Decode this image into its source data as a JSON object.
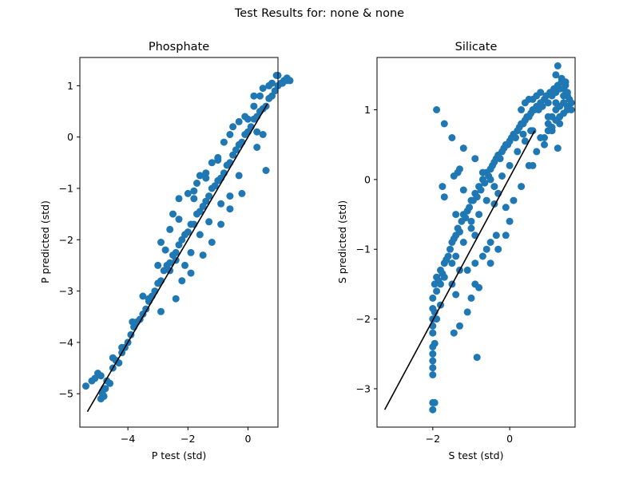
{
  "figure": {
    "suptitle": "Test Results for: none & none"
  },
  "chart_data": [
    {
      "type": "scatter",
      "title": "Phosphate",
      "xlabel": "P test (std)",
      "ylabel": "P predicted (std)",
      "xlim": [
        -5.6,
        1.0
      ],
      "ylim": [
        -5.65,
        1.55
      ],
      "xticks": [
        -4,
        -2,
        0
      ],
      "yticks": [
        -5,
        -4,
        -3,
        -2,
        -1,
        0,
        1
      ],
      "grid": false,
      "marker_color": "#1f77b4",
      "line_color": "#000000",
      "fit_line": {
        "x": [
          -5.35,
          0.65
        ],
        "y": [
          -5.35,
          0.65
        ]
      },
      "x": [
        -5.4,
        -5.2,
        -5.1,
        -5.0,
        -4.9,
        -4.85,
        -4.8,
        -4.75,
        -4.7,
        -4.6,
        -4.5,
        -4.4,
        -4.3,
        -4.2,
        -4.1,
        -4.0,
        -3.9,
        -3.8,
        -3.7,
        -3.6,
        -3.5,
        -3.4,
        -3.3,
        -3.2,
        -3.1,
        -3.0,
        -2.9,
        -2.8,
        -2.7,
        -2.6,
        -2.5,
        -2.4,
        -2.3,
        -2.2,
        -2.1,
        -2.0,
        -1.9,
        -1.8,
        -1.7,
        -1.6,
        -1.5,
        -1.4,
        -1.3,
        -1.2,
        -1.1,
        -1.0,
        -0.9,
        -0.8,
        -0.7,
        -0.6,
        -0.5,
        -0.4,
        -0.3,
        -0.2,
        -0.1,
        0.0,
        0.1,
        0.2,
        0.3,
        0.4,
        0.5,
        0.6,
        0.7,
        0.8,
        0.9,
        1.0,
        1.1,
        1.2,
        1.3,
        1.4,
        -3.5,
        -3.0,
        -2.9,
        -2.6,
        -2.5,
        -2.3,
        -2.0,
        -1.8,
        -1.7,
        -1.6,
        -1.4,
        -1.2,
        -1.0,
        -0.8,
        -0.5,
        -0.3,
        0.0,
        0.2,
        0.4,
        0.5,
        0.8,
        1.0,
        -2.9,
        -2.4,
        -2.1,
        -1.9,
        -1.5,
        -1.2,
        -0.9,
        -0.6,
        -0.2,
        0.3,
        -4.9,
        -4.8,
        -4.85,
        -2.6,
        -2.4,
        -2.2,
        -1.9,
        -1.6,
        -1.3,
        -0.9,
        -0.6,
        -0.3,
        0.6,
        0.5,
        0.3,
        1.3,
        -4.5,
        -4.2,
        -3.85,
        -3.3,
        -2.75,
        -2.3,
        -1.8,
        -1.4,
        -1.0,
        -0.6,
        -0.1,
        0.2,
        0.7,
        0.95,
        1.15
      ],
      "y": [
        -4.85,
        -4.75,
        -4.7,
        -4.6,
        -4.65,
        -5.0,
        -4.9,
        -4.9,
        -4.75,
        -4.8,
        -4.5,
        -4.35,
        -4.4,
        -4.2,
        -4.1,
        -4.0,
        -3.85,
        -3.7,
        -3.6,
        -3.55,
        -3.45,
        -3.35,
        -3.2,
        -3.1,
        -3.0,
        -2.85,
        -2.8,
        -2.6,
        -2.5,
        -2.45,
        -2.3,
        -2.25,
        -2.1,
        -2.0,
        -1.9,
        -1.85,
        -1.7,
        -1.7,
        -1.5,
        -1.45,
        -1.35,
        -1.25,
        -1.15,
        -1.0,
        -0.95,
        -0.85,
        -0.8,
        -0.7,
        -0.55,
        -0.5,
        -0.35,
        -0.25,
        -0.15,
        -0.1,
        0.05,
        0.1,
        0.2,
        0.35,
        0.4,
        0.5,
        0.55,
        0.6,
        0.75,
        0.8,
        0.9,
        1.0,
        1.05,
        1.1,
        1.15,
        1.1,
        -3.1,
        -2.5,
        -2.05,
        -1.8,
        -1.5,
        -1.2,
        -1.1,
        -1.05,
        -0.9,
        -0.75,
        -0.7,
        -0.5,
        -0.4,
        -0.1,
        0.2,
        0.3,
        0.35,
        0.6,
        0.8,
        0.95,
        1.05,
        1.2,
        -3.4,
        -3.15,
        -2.5,
        -2.65,
        -2.3,
        -2.05,
        -1.7,
        -1.4,
        -1.1,
        -0.2,
        -5.1,
        -5.05,
        -4.95,
        -2.6,
        -2.4,
        -2.8,
        -2.25,
        -1.9,
        -1.65,
        -1.3,
        -1.15,
        -0.75,
        -0.65,
        0.05,
        0.1,
        1.1,
        -4.3,
        -4.1,
        -3.6,
        -3.15,
        -2.2,
        -1.6,
        -1.2,
        -0.8,
        -0.45,
        0.05,
        0.4,
        0.8,
        1.0,
        1.2,
        1.05
      ]
    },
    {
      "type": "scatter",
      "title": "Silicate",
      "xlabel": "S test (std)",
      "ylabel": "S predicted (std)",
      "xlim": [
        -3.45,
        1.7
      ],
      "ylim": [
        -3.55,
        1.75
      ],
      "xticks": [
        -2,
        0
      ],
      "yticks": [
        -3,
        -2,
        -1,
        0,
        1
      ],
      "grid": false,
      "marker_color": "#1f77b4",
      "line_color": "#000000",
      "fit_line": {
        "x": [
          -3.25,
          0.65
        ],
        "y": [
          -3.3,
          0.7
        ]
      },
      "x": [
        -2.0,
        -2.0,
        -2.0,
        -2.0,
        -2.0,
        -2.0,
        -2.0,
        -1.95,
        -1.95,
        -1.9,
        -1.9,
        -1.85,
        -1.8,
        -1.8,
        -1.75,
        -1.7,
        -1.7,
        -1.65,
        -1.6,
        -1.55,
        -1.5,
        -1.5,
        -1.45,
        -1.4,
        -1.4,
        -1.35,
        -1.3,
        -1.25,
        -1.2,
        -1.2,
        -1.15,
        -1.1,
        -1.05,
        -1.0,
        -1.0,
        -0.95,
        -0.9,
        -0.85,
        -0.8,
        -0.8,
        -0.75,
        -0.7,
        -0.65,
        -0.6,
        -0.6,
        -0.55,
        -0.5,
        -0.45,
        -0.4,
        -0.4,
        -0.35,
        -0.3,
        -0.25,
        -0.2,
        -0.2,
        -0.15,
        -0.1,
        -0.05,
        0.0,
        0.0,
        0.05,
        0.1,
        0.15,
        0.2,
        0.2,
        0.25,
        0.3,
        0.35,
        0.4,
        0.4,
        0.45,
        0.5,
        0.55,
        0.6,
        0.6,
        0.65,
        0.7,
        0.75,
        0.8,
        0.85,
        0.9,
        0.95,
        1.0,
        1.05,
        1.1,
        1.15,
        1.2,
        1.25,
        1.3,
        1.35,
        1.4,
        1.45,
        1.5,
        1.55,
        1.6,
        1.0,
        1.1,
        1.2,
        1.3,
        1.4,
        1.5,
        0.9,
        1.0,
        1.1,
        1.2,
        1.3,
        1.4,
        1.5,
        1.2,
        1.25,
        1.35,
        1.45,
        0.8,
        0.7,
        0.6,
        0.5,
        0.4,
        0.3,
        -2.0,
        -2.0,
        -1.95,
        -1.45,
        -1.3,
        -1.1,
        -1.0,
        -0.9,
        -0.8,
        -0.5,
        -0.3,
        -0.1,
        0.0,
        -0.1,
        -0.3,
        -0.5,
        -0.7,
        -0.9,
        -1.2,
        -1.5,
        -1.7,
        -1.9,
        -2.0,
        -2.0,
        -1.95,
        -2.0,
        -1.9,
        -1.8,
        -1.4,
        -1.5,
        -1.3,
        -1.1,
        -0.9,
        -0.7,
        -0.5,
        -0.35,
        0.1,
        0.3,
        0.5,
        0.7,
        0.9,
        1.1,
        1.3,
        1.5,
        1.6,
        1.4,
        1.2,
        1.0,
        0.8,
        0.6,
        1.25,
        0.55,
        0.35,
        0.15,
        -1.3,
        -1.35,
        -1.45,
        -1.7,
        -1.75,
        -0.4,
        -0.9,
        -1.0,
        -0.85,
        -1.4,
        -0.6,
        -1.2
      ],
      "y": [
        -2.8,
        -2.6,
        -2.4,
        -2.2,
        -2.0,
        -1.85,
        -1.7,
        -1.9,
        -1.5,
        -1.6,
        -1.4,
        -1.45,
        -1.5,
        -1.3,
        -1.35,
        -1.2,
        -1.4,
        -1.15,
        -1.1,
        -1.0,
        -0.9,
        -1.2,
        -0.85,
        -0.8,
        -1.1,
        -0.7,
        -0.75,
        -0.6,
        -0.5,
        -0.9,
        -0.55,
        -0.45,
        -0.4,
        -0.3,
        -0.7,
        -0.3,
        -0.2,
        -0.25,
        -0.1,
        -0.5,
        -0.15,
        0.0,
        -0.05,
        0.1,
        -0.3,
        0.05,
        0.15,
        0.2,
        0.25,
        -0.1,
        0.3,
        0.35,
        0.3,
        0.4,
        0.05,
        0.45,
        0.5,
        0.5,
        0.55,
        0.2,
        0.6,
        0.65,
        0.6,
        0.7,
        0.4,
        0.75,
        0.8,
        0.8,
        0.85,
        0.55,
        0.9,
        0.9,
        0.95,
        1.0,
        0.7,
        1.0,
        1.05,
        1.0,
        1.1,
        1.05,
        1.15,
        1.2,
        1.1,
        1.25,
        1.2,
        1.3,
        1.25,
        1.35,
        1.3,
        1.4,
        1.3,
        1.35,
        1.2,
        1.15,
        1.1,
        0.8,
        0.9,
        1.0,
        1.05,
        1.1,
        1.0,
        0.6,
        0.7,
        0.75,
        0.85,
        0.9,
        0.95,
        1.25,
        1.5,
        1.63,
        1.45,
        1.4,
        1.25,
        1.2,
        1.15,
        1.15,
        1.1,
        1.0,
        -3.2,
        -3.3,
        -3.2,
        -2.2,
        -2.1,
        -1.9,
        -1.7,
        -1.5,
        -1.55,
        -1.2,
        -1.0,
        -0.8,
        -0.6,
        -0.4,
        -0.2,
        0.0,
        0.1,
        0.3,
        0.45,
        0.6,
        0.8,
        1.0,
        -2.7,
        -2.5,
        -2.35,
        -2.1,
        -2.0,
        -1.8,
        -1.65,
        -1.5,
        -1.3,
        -1.3,
        -1.2,
        -1.1,
        -0.9,
        -0.8,
        -0.3,
        -0.1,
        0.2,
        0.4,
        0.5,
        0.7,
        0.8,
        1.05,
        1.0,
        1.2,
        1.1,
        0.9,
        0.6,
        0.2,
        0.45,
        0.7,
        0.65,
        0.6,
        0.15,
        0.1,
        0.05,
        -0.25,
        -0.1,
        -0.35,
        -0.8,
        -0.6,
        -2.55,
        -0.5,
        -1.0,
        -0.15
      ]
    }
  ]
}
